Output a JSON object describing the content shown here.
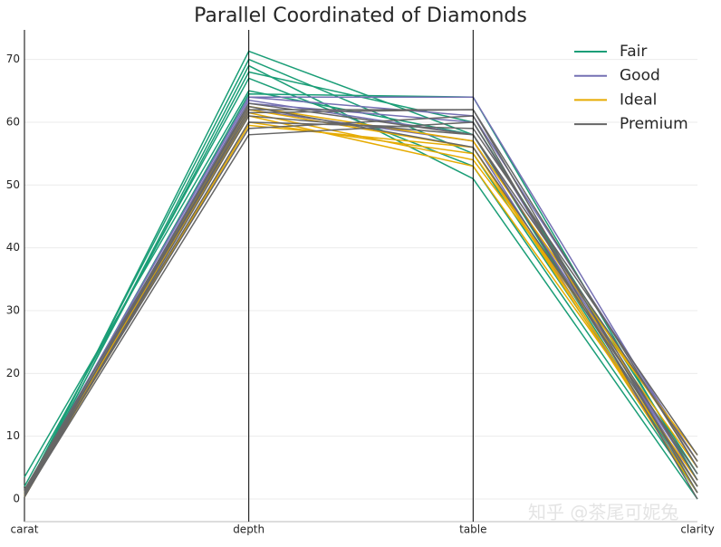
{
  "chart_data": {
    "type": "parallel",
    "title": "Parallel Coordinated of Diamonds",
    "categories": [
      "carat",
      "depth",
      "table",
      "clarity"
    ],
    "ylim": [
      -3.6,
      74.7
    ],
    "yticks": [
      0,
      10,
      20,
      30,
      40,
      50,
      60,
      70
    ],
    "grid": true,
    "legend": "upper right",
    "watermark": "知乎 @茶尾可妮兔",
    "series": [
      {
        "name": "Fair",
        "color": "#1b9e77",
        "values": [
          [
            0.5,
            71.3,
            58,
            1
          ],
          [
            1,
            70,
            55,
            2
          ],
          [
            0.3,
            69,
            51,
            0
          ],
          [
            3.5,
            65,
            58,
            2
          ],
          [
            0.9,
            64.5,
            64,
            3
          ],
          [
            2,
            67,
            53,
            1
          ],
          [
            0.7,
            68,
            60,
            4
          ]
        ]
      },
      {
        "name": "Good",
        "color": "#7570b3",
        "values": [
          [
            0.3,
            63.5,
            58,
            3
          ],
          [
            1.2,
            64,
            64,
            5
          ],
          [
            0.5,
            63,
            60,
            2
          ],
          [
            0.9,
            64,
            61,
            6
          ],
          [
            0.7,
            62,
            57,
            1
          ]
        ]
      },
      {
        "name": "Ideal",
        "color": "#e6ab02",
        "values": [
          [
            0.3,
            61.5,
            54,
            7
          ],
          [
            0.8,
            62,
            56,
            2
          ],
          [
            0.5,
            60,
            55,
            5
          ],
          [
            1.1,
            61,
            53,
            3
          ],
          [
            0.4,
            62.5,
            57,
            6
          ],
          [
            0.6,
            59.5,
            56,
            1
          ]
        ]
      },
      {
        "name": "Premium",
        "color": "#666666",
        "values": [
          [
            0.3,
            61,
            58,
            2
          ],
          [
            1,
            62,
            62,
            5
          ],
          [
            0.7,
            60,
            59,
            7
          ],
          [
            0.5,
            58,
            60,
            3
          ],
          [
            1.5,
            62.5,
            56,
            4
          ],
          [
            0.9,
            59,
            61,
            0
          ],
          [
            0.4,
            63,
            58,
            6
          ],
          [
            1.2,
            61.5,
            62,
            1
          ]
        ]
      }
    ]
  }
}
